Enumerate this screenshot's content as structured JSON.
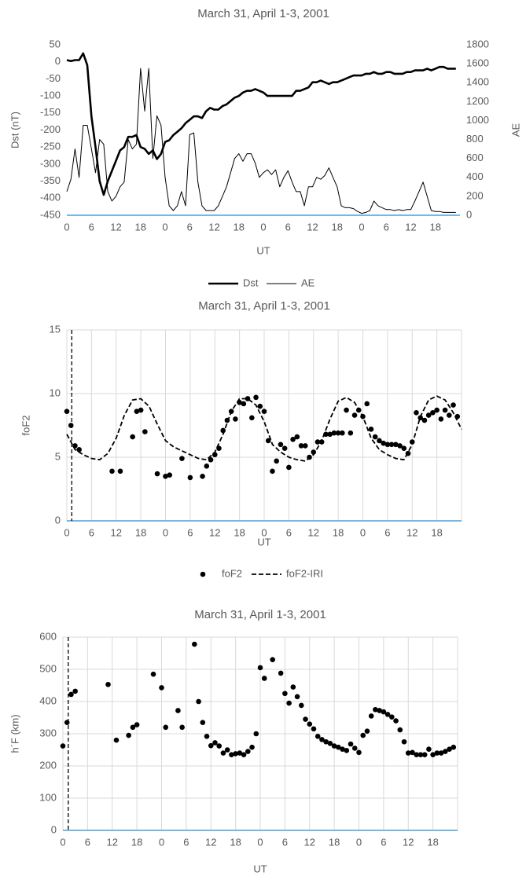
{
  "chart_data": [
    {
      "type": "line",
      "title": "March 31, April 1-3, 2001",
      "ylabel": "Dst (nT)",
      "y2label": "AE",
      "xlabel": "UT",
      "xlim": [
        0,
        96
      ],
      "xticks": [
        0,
        6,
        12,
        18,
        {
          "value": 24,
          "label": "0"
        },
        {
          "value": 30,
          "label": "6"
        },
        {
          "value": 36,
          "label": "12"
        },
        {
          "value": 42,
          "label": "18"
        },
        {
          "value": 48,
          "label": "0"
        },
        {
          "value": 54,
          "label": "6"
        },
        {
          "value": 60,
          "label": "12"
        },
        {
          "value": 66,
          "label": "18"
        },
        {
          "value": 72,
          "label": "0"
        },
        {
          "value": 78,
          "label": "6"
        },
        {
          "value": 84,
          "label": "12"
        },
        {
          "value": 90,
          "label": "18"
        }
      ],
      "ylim": [
        -450,
        50
      ],
      "yticks": [
        -450,
        -400,
        -350,
        -300,
        -250,
        -200,
        -150,
        -100,
        -50,
        0,
        50
      ],
      "y2lim": [
        0,
        1800
      ],
      "y2ticks": [
        0,
        200,
        400,
        600,
        800,
        1000,
        1200,
        1400,
        1600,
        1800
      ],
      "grid": false,
      "legend": "bottom",
      "x": [
        0,
        1,
        2,
        3,
        4,
        5,
        6,
        7,
        8,
        9,
        10,
        11,
        12,
        13,
        14,
        15,
        16,
        17,
        18,
        19,
        20,
        21,
        22,
        23,
        24,
        25,
        26,
        27,
        28,
        29,
        30,
        31,
        32,
        33,
        34,
        35,
        36,
        37,
        38,
        39,
        40,
        41,
        42,
        43,
        44,
        45,
        46,
        47,
        48,
        49,
        50,
        51,
        52,
        53,
        54,
        55,
        56,
        57,
        58,
        59,
        60,
        61,
        62,
        63,
        64,
        65,
        66,
        67,
        68,
        69,
        70,
        71,
        72,
        73,
        74,
        75,
        76,
        77,
        78,
        79,
        80,
        81,
        82,
        83,
        84,
        85,
        86,
        87,
        88,
        89,
        90,
        91,
        92,
        93,
        94,
        95
      ],
      "series": [
        {
          "name": "Dst",
          "color": "#000000",
          "line_width": 2.6,
          "values": [
            5,
            2,
            5,
            5,
            25,
            -10,
            -160,
            -250,
            -350,
            -390,
            -350,
            -320,
            -290,
            -260,
            -250,
            -220,
            -220,
            -215,
            -250,
            -255,
            -270,
            -260,
            -285,
            -270,
            -235,
            -230,
            -215,
            -205,
            -195,
            -180,
            -170,
            -160,
            -160,
            -165,
            -145,
            -135,
            -140,
            -140,
            -130,
            -125,
            -115,
            -105,
            -100,
            -90,
            -85,
            -85,
            -80,
            -85,
            -90,
            -100,
            -100,
            -100,
            -100,
            -100,
            -100,
            -100,
            -85,
            -85,
            -80,
            -75,
            -60,
            -60,
            -55,
            -60,
            -65,
            -60,
            -60,
            -55,
            -50,
            -45,
            -40,
            -40,
            -40,
            -35,
            -35,
            -30,
            -35,
            -35,
            -30,
            -30,
            -35,
            -35,
            -35,
            -30,
            -30,
            -25,
            -25,
            -25,
            -20,
            -25,
            -20,
            -15,
            -15,
            -20,
            -20,
            -20
          ]
        },
        {
          "name": "AE",
          "color": "#000000",
          "line_width": 1,
          "axis": "y2",
          "values": [
            250,
            380,
            700,
            400,
            950,
            950,
            700,
            450,
            800,
            750,
            250,
            150,
            200,
            300,
            350,
            800,
            700,
            750,
            1550,
            1100,
            1550,
            600,
            1050,
            950,
            400,
            100,
            50,
            100,
            250,
            100,
            850,
            870,
            350,
            100,
            50,
            50,
            50,
            100,
            200,
            300,
            450,
            600,
            650,
            570,
            650,
            650,
            550,
            400,
            450,
            480,
            430,
            480,
            300,
            400,
            470,
            350,
            250,
            250,
            100,
            300,
            300,
            400,
            380,
            420,
            500,
            400,
            300,
            100,
            80,
            80,
            70,
            40,
            20,
            30,
            50,
            150,
            100,
            80,
            60,
            60,
            50,
            60,
            50,
            60,
            60,
            150,
            250,
            350,
            200,
            50,
            40,
            40,
            30,
            30,
            30,
            30
          ]
        }
      ]
    },
    {
      "type": "scatter",
      "title": "March 31, April 1-3, 2001",
      "ylabel": "foF2",
      "xlabel": "UT",
      "xlim": [
        0,
        96
      ],
      "xticks": [
        0,
        6,
        12,
        18,
        {
          "value": 24,
          "label": "0"
        },
        {
          "value": 30,
          "label": "6"
        },
        {
          "value": 36,
          "label": "12"
        },
        {
          "value": 42,
          "label": "18"
        },
        {
          "value": 48,
          "label": "0"
        },
        {
          "value": 54,
          "label": "6"
        },
        {
          "value": 60,
          "label": "12"
        },
        {
          "value": 66,
          "label": "18"
        },
        {
          "value": 72,
          "label": "0"
        },
        {
          "value": 78,
          "label": "6"
        },
        {
          "value": 84,
          "label": "12"
        },
        {
          "value": 90,
          "label": "18"
        }
      ],
      "ylim": [
        0,
        15
      ],
      "yticks": [
        0,
        5,
        10,
        15
      ],
      "grid": true,
      "legend": "bottom",
      "vline": 1.2,
      "series": [
        {
          "name": "foF2",
          "color": "#000000",
          "mark": "dot",
          "x": [
            0,
            1,
            2,
            3,
            11,
            13,
            16,
            17,
            18,
            19,
            22,
            24,
            25,
            28,
            30,
            33,
            34,
            35,
            36,
            37,
            38,
            39,
            40,
            41,
            42,
            43,
            44,
            45,
            46,
            47,
            48,
            49,
            50,
            51,
            52,
            53,
            54,
            55,
            56,
            57,
            58,
            59,
            60,
            61,
            62,
            63,
            64,
            65,
            66,
            67,
            68,
            69,
            70,
            71,
            72,
            73,
            74,
            75,
            76,
            77,
            78,
            79,
            80,
            81,
            82,
            83,
            84,
            85,
            86,
            87,
            88,
            89,
            90,
            91,
            92,
            93,
            94,
            95
          ],
          "values": [
            8.6,
            7.5,
            5.9,
            5.6,
            3.9,
            3.9,
            6.6,
            8.6,
            8.7,
            7.0,
            3.7,
            3.5,
            3.6,
            4.9,
            3.4,
            3.5,
            4.3,
            4.8,
            5.2,
            5.7,
            7.1,
            7.9,
            8.6,
            8.0,
            9.3,
            9.2,
            9.6,
            8.1,
            9.7,
            9.0,
            8.6,
            6.3,
            3.9,
            4.7,
            6.0,
            5.7,
            4.2,
            6.4,
            6.6,
            5.9,
            5.9,
            5.0,
            5.4,
            6.2,
            6.2,
            6.8,
            6.8,
            6.9,
            6.9,
            6.9,
            8.7,
            6.9,
            8.3,
            8.7,
            8.2,
            9.2,
            7.2,
            6.6,
            6.3,
            6.1,
            6.0,
            6.0,
            6.0,
            5.9,
            5.7,
            5.3,
            6.2,
            8.5,
            8.1,
            7.9,
            8.3,
            8.5,
            8.7,
            8.0,
            8.7,
            8.3,
            9.1,
            8.2
          ]
        },
        {
          "name": "foF2-IRI",
          "color": "#000000",
          "mark": "dashed",
          "x": [
            0,
            2,
            4,
            6,
            8,
            10,
            12,
            14,
            16,
            18,
            20,
            22,
            24,
            26,
            28,
            30,
            32,
            34,
            36,
            38,
            40,
            42,
            44,
            46,
            48,
            50,
            52,
            54,
            56,
            58,
            60,
            62,
            64,
            66,
            68,
            70,
            72,
            74,
            76,
            78,
            80,
            82,
            84,
            86,
            88,
            90,
            92,
            94,
            96
          ],
          "values": [
            6.8,
            5.6,
            5.2,
            4.9,
            4.8,
            5.3,
            6.5,
            8.3,
            9.5,
            9.6,
            9.0,
            7.6,
            6.3,
            5.8,
            5.5,
            5.2,
            4.9,
            4.8,
            5.4,
            6.8,
            8.6,
            9.6,
            9.6,
            9.1,
            7.8,
            6.0,
            5.4,
            5.0,
            4.8,
            4.7,
            5.2,
            6.3,
            8.0,
            9.4,
            9.7,
            9.3,
            8.2,
            6.5,
            5.6,
            5.2,
            4.9,
            4.8,
            6.0,
            8.2,
            9.5,
            9.8,
            9.5,
            8.5,
            7.2
          ]
        }
      ]
    },
    {
      "type": "scatter",
      "title": "March 31, April 1-3, 2001",
      "ylabel": "h´F (km)",
      "xlabel": "UT",
      "xlim": [
        0,
        96
      ],
      "xticks": [
        0,
        6,
        12,
        18,
        {
          "value": 24,
          "label": "0"
        },
        {
          "value": 30,
          "label": "6"
        },
        {
          "value": 36,
          "label": "12"
        },
        {
          "value": 42,
          "label": "18"
        },
        {
          "value": 48,
          "label": "0"
        },
        {
          "value": 54,
          "label": "6"
        },
        {
          "value": 60,
          "label": "12"
        },
        {
          "value": 66,
          "label": "18"
        },
        {
          "value": 72,
          "label": "0"
        },
        {
          "value": 78,
          "label": "6"
        },
        {
          "value": 84,
          "label": "12"
        },
        {
          "value": 90,
          "label": "18"
        }
      ],
      "ylim": [
        0,
        600
      ],
      "yticks": [
        0,
        100,
        200,
        300,
        400,
        500,
        600
      ],
      "grid": true,
      "vline": 1.3,
      "series": [
        {
          "color": "#000000",
          "mark": "dot",
          "x": [
            0,
            1,
            2,
            3,
            11,
            13,
            16,
            17,
            18,
            22,
            24,
            25,
            28,
            29,
            32,
            33,
            34,
            35,
            36,
            37,
            38,
            39,
            40,
            41,
            42,
            43,
            44,
            45,
            46,
            47,
            48,
            49,
            51,
            53,
            54,
            55,
            56,
            57,
            58,
            59,
            60,
            61,
            62,
            63,
            64,
            65,
            66,
            67,
            68,
            69,
            70,
            71,
            72,
            73,
            74,
            75,
            76,
            77,
            78,
            79,
            80,
            81,
            82,
            83,
            84,
            85,
            86,
            87,
            88,
            89,
            90,
            91,
            92,
            93,
            94,
            95
          ],
          "values": [
            262,
            335,
            422,
            432,
            453,
            280,
            295,
            320,
            328,
            485,
            443,
            320,
            372,
            320,
            578,
            400,
            335,
            292,
            263,
            272,
            262,
            240,
            250,
            235,
            238,
            240,
            235,
            245,
            258,
            300,
            505,
            472,
            530,
            488,
            425,
            395,
            445,
            415,
            388,
            345,
            330,
            315,
            292,
            282,
            275,
            270,
            262,
            258,
            252,
            248,
            268,
            255,
            242,
            295,
            308,
            355,
            375,
            372,
            368,
            360,
            352,
            340,
            312,
            275,
            240,
            242,
            235,
            235,
            235,
            252,
            235,
            240,
            240,
            245,
            252,
            258
          ]
        }
      ]
    }
  ]
}
